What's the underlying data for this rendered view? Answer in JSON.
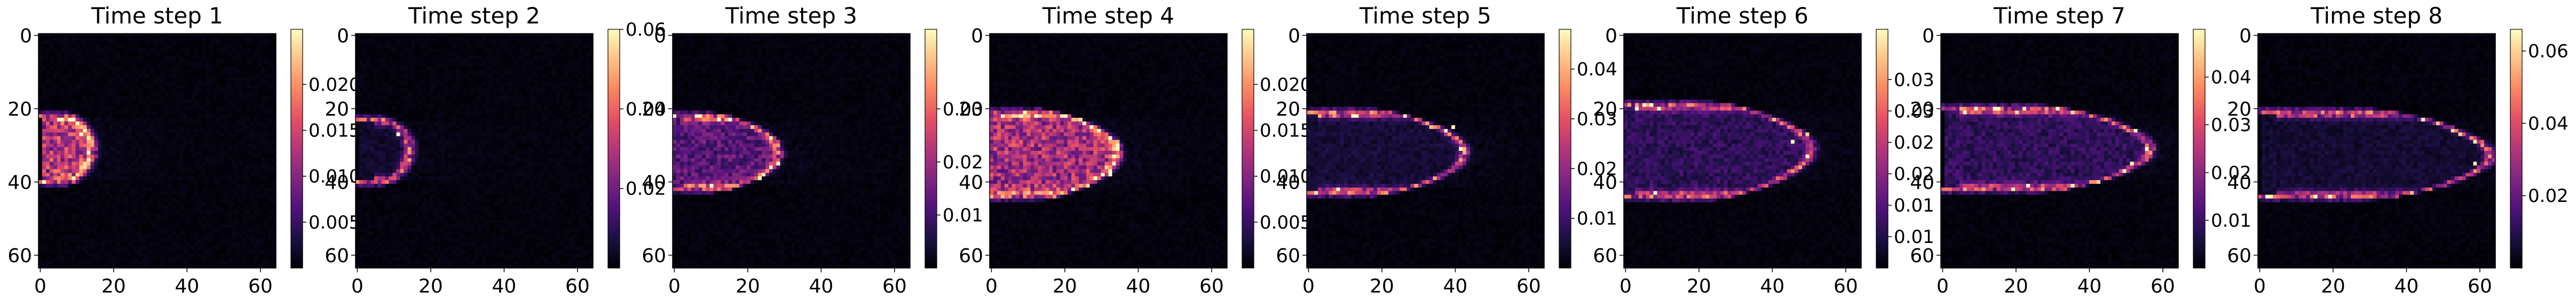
{
  "figure": {
    "colormap": [
      "#000004",
      "#1c1044",
      "#4f127b",
      "#812581",
      "#b5367a",
      "#e55064",
      "#fb8761",
      "#fec287",
      "#fcfdbf"
    ],
    "background_color": "#ffffff"
  },
  "chart_data": [
    {
      "type": "heatmap",
      "title": "Time step 1",
      "xlim": [
        0,
        63
      ],
      "ylim": [
        63,
        0
      ],
      "xticks": [
        0,
        20,
        40,
        60
      ],
      "yticks": [
        0,
        20,
        40,
        60
      ],
      "colorbar": {
        "min": 0.0,
        "max": 0.026,
        "ticks": [
          "0.005",
          "0.010",
          "0.015",
          "0.020"
        ],
        "tick_values": [
          0.005,
          0.01,
          0.015,
          0.02
        ]
      },
      "front": {
        "x_nose": 14,
        "x_tail": 4,
        "y_top": 22,
        "y_bot": 40,
        "y_center": 31,
        "x_shift": 0
      },
      "peak_value": 0.026,
      "interior_value": 0.013
    },
    {
      "type": "heatmap",
      "title": "Time step 2",
      "xlim": [
        0,
        63
      ],
      "ylim": [
        63,
        0
      ],
      "xticks": [
        0,
        20,
        40,
        60
      ],
      "yticks": [
        0,
        20,
        40,
        60
      ],
      "colorbar": {
        "min": 0.0,
        "max": 0.06,
        "ticks": [
          "0.02",
          "0.04",
          "0.06"
        ],
        "tick_values": [
          0.02,
          0.04,
          0.06
        ]
      },
      "front": {
        "x_nose": 14,
        "x_tail": 4,
        "y_top": 23,
        "y_bot": 40,
        "y_center": 31,
        "x_shift": 0
      },
      "peak_value": 0.06,
      "interior_value": 0.004
    },
    {
      "type": "heatmap",
      "title": "Time step 3",
      "xlim": [
        0,
        63
      ],
      "ylim": [
        63,
        0
      ],
      "xticks": [
        0,
        20,
        40,
        60
      ],
      "yticks": [
        0,
        20,
        40,
        60
      ],
      "colorbar": {
        "min": 0.0,
        "max": 0.045,
        "ticks": [
          "0.01",
          "0.02",
          "0.03"
        ],
        "tick_values": [
          0.01,
          0.02,
          0.03
        ]
      },
      "front": {
        "x_nose": 28,
        "x_tail": 2,
        "y_top": 22,
        "y_bot": 42,
        "y_center": 32,
        "x_shift": 0
      },
      "peak_value": 0.045,
      "interior_value": 0.012
    },
    {
      "type": "heatmap",
      "title": "Time step 4",
      "xlim": [
        0,
        63
      ],
      "ylim": [
        63,
        0
      ],
      "xticks": [
        0,
        20,
        40,
        60
      ],
      "yticks": [
        0,
        20,
        40,
        60
      ],
      "colorbar": {
        "min": 0.0,
        "max": 0.026,
        "ticks": [
          "0.005",
          "0.010",
          "0.015",
          "0.020"
        ],
        "tick_values": [
          0.005,
          0.01,
          0.015,
          0.02
        ]
      },
      "front": {
        "x_nose": 34,
        "x_tail": 1,
        "y_top": 21,
        "y_bot": 44,
        "y_center": 32,
        "x_shift": 2
      },
      "peak_value": 0.026,
      "interior_value": 0.012
    },
    {
      "type": "heatmap",
      "title": "Time step 5",
      "xlim": [
        0,
        63
      ],
      "ylim": [
        63,
        0
      ],
      "xticks": [
        0,
        20,
        40,
        60
      ],
      "yticks": [
        0,
        20,
        40,
        60
      ],
      "colorbar": {
        "min": 0.0,
        "max": 0.048,
        "ticks": [
          "0.01",
          "0.02",
          "0.03",
          "0.04"
        ],
        "tick_values": [
          0.01,
          0.02,
          0.03,
          0.04
        ]
      },
      "front": {
        "x_nose": 42,
        "x_tail": 2,
        "y_top": 21,
        "y_bot": 43,
        "y_center": 32,
        "x_shift": 4
      },
      "peak_value": 0.048,
      "interior_value": 0.004
    },
    {
      "type": "heatmap",
      "title": "Time step 6",
      "xlim": [
        0,
        63
      ],
      "ylim": [
        63,
        0
      ],
      "xticks": [
        0,
        20,
        40,
        60
      ],
      "yticks": [
        0,
        20,
        40,
        60
      ],
      "colorbar": {
        "min": 0.0,
        "max": 0.038,
        "ticks": [
          "0.01",
          "0.01",
          "0.02",
          "0.02",
          "0.03",
          "0.03"
        ],
        "tick_values": [
          0.005,
          0.01,
          0.015,
          0.02,
          0.025,
          0.03
        ]
      },
      "front": {
        "x_nose": 50,
        "x_tail": 2,
        "y_top": 19,
        "y_bot": 44,
        "y_center": 31,
        "x_shift": 8
      },
      "peak_value": 0.038,
      "interior_value": 0.006
    },
    {
      "type": "heatmap",
      "title": "Time step 7",
      "xlim": [
        0,
        63
      ],
      "ylim": [
        63,
        0
      ],
      "xticks": [
        0,
        20,
        40,
        60
      ],
      "yticks": [
        0,
        20,
        40,
        60
      ],
      "colorbar": {
        "min": 0.0,
        "max": 0.05,
        "ticks": [
          "0.01",
          "0.02",
          "0.03",
          "0.04"
        ],
        "tick_values": [
          0.01,
          0.02,
          0.03,
          0.04
        ]
      },
      "front": {
        "x_nose": 56,
        "x_tail": 4,
        "y_top": 20,
        "y_bot": 42,
        "y_center": 31,
        "x_shift": 10
      },
      "peak_value": 0.05,
      "interior_value": 0.008
    },
    {
      "type": "heatmap",
      "title": "Time step 8",
      "xlim": [
        0,
        63
      ],
      "ylim": [
        63,
        0
      ],
      "xticks": [
        0,
        20,
        40,
        60
      ],
      "yticks": [
        0,
        20,
        40,
        60
      ],
      "colorbar": {
        "min": 0.0,
        "max": 0.066,
        "ticks": [
          "0.02",
          "0.04",
          "0.06"
        ],
        "tick_values": [
          0.02,
          0.04,
          0.06
        ]
      },
      "front": {
        "x_nose": 62,
        "x_tail": 4,
        "y_top": 21,
        "y_bot": 44,
        "y_center": 33,
        "x_shift": 12
      },
      "peak_value": 0.066,
      "interior_value": 0.005
    }
  ]
}
